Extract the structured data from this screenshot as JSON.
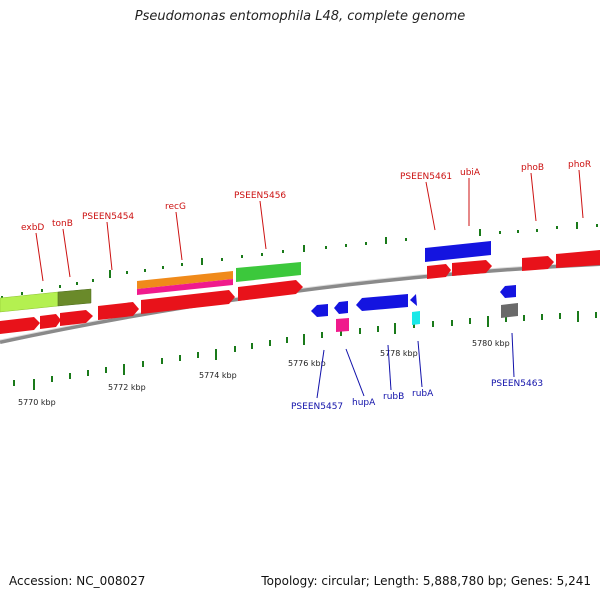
{
  "title": "Pseudomonas entomophila L48, complete genome",
  "accession": "Accession: NC_008027",
  "summary": "Topology: circular; Length: 5,888,780 bp; Genes: 5,241",
  "colors": {
    "background": "#ffffff",
    "backbone": "#8a8a8a",
    "tick": "#1a7a1a",
    "red_gene": "#e8121a",
    "blue_gene": "#1414e0",
    "green_gene": "#3cc83c",
    "lime_gene": "#b4f050",
    "olive_gene": "#6a8a2a",
    "orange_gene": "#f08a1a",
    "pink_gene": "#f01a8c",
    "cyan_gene": "#1ae8e8",
    "gray_gene": "#6a6a6a",
    "label_red": "#cc1111",
    "label_blue": "#1111aa"
  },
  "kbp_labels": [
    "5770 kbp",
    "5772 kbp",
    "5774 kbp",
    "5776 kbp",
    "5778 kbp",
    "5780 kbp"
  ],
  "gene_labels_forward": [
    "exbD",
    "tonB",
    "PSEEN5454",
    "recG",
    "PSEEN5456",
    "PSEEN5461",
    "ubiA",
    "phoB",
    "phoR"
  ],
  "gene_labels_reverse": [
    "PSEEN5457",
    "hupA",
    "rubB",
    "rubA",
    "PSEEN5463"
  ]
}
